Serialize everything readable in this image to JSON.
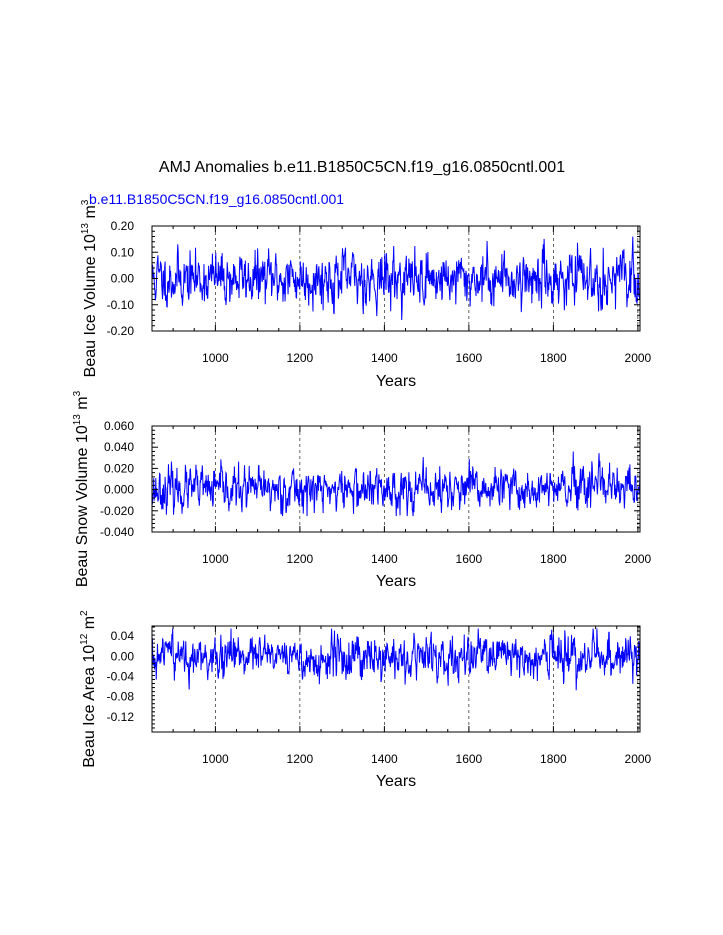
{
  "page_title": "AMJ Anomalies b.e11.B1850C5CN.f19_g16.0850cntl.001",
  "series_label": "b.e11.B1850C5CN.f19_g16.0850cntl.001",
  "colors": {
    "series": "#0000ff",
    "axis": "#000000",
    "grid": "#000000"
  },
  "chart_data": [
    {
      "type": "line",
      "title": "",
      "xlabel": "Years",
      "ylabel_parts": [
        "Beau Ice Volume 10",
        "13",
        " m",
        "3"
      ],
      "xlim": [
        850,
        2005
      ],
      "ylim": [
        -0.2,
        0.2
      ],
      "xticks": [
        1000,
        1200,
        1400,
        1600,
        1800,
        2000
      ],
      "xtick_labels": [
        "1000",
        "1200",
        "1400",
        "1600",
        "1800",
        "2000"
      ],
      "yticks": [
        -0.2,
        -0.1,
        0.0,
        0.1,
        0.2
      ],
      "ytick_labels": [
        "-0.20",
        "-0.10",
        "0.00",
        "0.10",
        "0.20"
      ],
      "grid": "vertical dashed at major x ticks",
      "series": [
        {
          "name": "b.e11.B1850C5CN.f19_g16.0850cntl.001",
          "x_start": 850,
          "x_end": 2005,
          "noise_amp": 0.045,
          "clip": [
            -0.16,
            0.16
          ],
          "seed": 11
        }
      ]
    },
    {
      "type": "line",
      "title": "",
      "xlabel": "Years",
      "ylabel_parts": [
        "Beau Snow Volume 10",
        "13",
        " m",
        "3"
      ],
      "xlim": [
        850,
        2005
      ],
      "ylim": [
        -0.04,
        0.06
      ],
      "xticks": [
        1000,
        1200,
        1400,
        1600,
        1800,
        2000
      ],
      "xtick_labels": [
        "1000",
        "1200",
        "1400",
        "1600",
        "1800",
        "2000"
      ],
      "yticks": [
        -0.04,
        -0.02,
        0.0,
        0.02,
        0.04,
        0.06
      ],
      "ytick_labels": [
        "-0.040",
        "-0.020",
        "0.000",
        "0.020",
        "0.040",
        "0.060"
      ],
      "grid": "vertical dashed at major x ticks",
      "series": [
        {
          "name": "b.e11.B1850C5CN.f19_g16.0850cntl.001",
          "x_start": 850,
          "x_end": 2005,
          "noise_amp": 0.009,
          "clip": [
            -0.025,
            0.055
          ],
          "seed": 23
        }
      ]
    },
    {
      "type": "line",
      "title": "",
      "xlabel": "Years",
      "ylabel_parts": [
        "Beau Ice Area 10",
        "12",
        " m",
        "2"
      ],
      "xlim": [
        850,
        2005
      ],
      "ylim": [
        -0.15,
        0.06
      ],
      "xticks": [
        1000,
        1200,
        1400,
        1600,
        1800,
        2000
      ],
      "xtick_labels": [
        "1000",
        "1200",
        "1400",
        "1600",
        "1800",
        "2000"
      ],
      "yticks": [
        -0.12,
        -0.08,
        -0.04,
        0.0,
        0.04
      ],
      "ytick_labels": [
        "-0.12",
        "-0.08",
        "-0.04",
        "0.00",
        "0.04"
      ],
      "grid": "vertical dashed at major x ticks",
      "series": [
        {
          "name": "b.e11.B1850C5CN.f19_g16.0850cntl.001",
          "x_start": 850,
          "x_end": 2005,
          "noise_amp": 0.018,
          "clip": [
            -0.132,
            0.055
          ],
          "seed": 37
        }
      ]
    }
  ]
}
